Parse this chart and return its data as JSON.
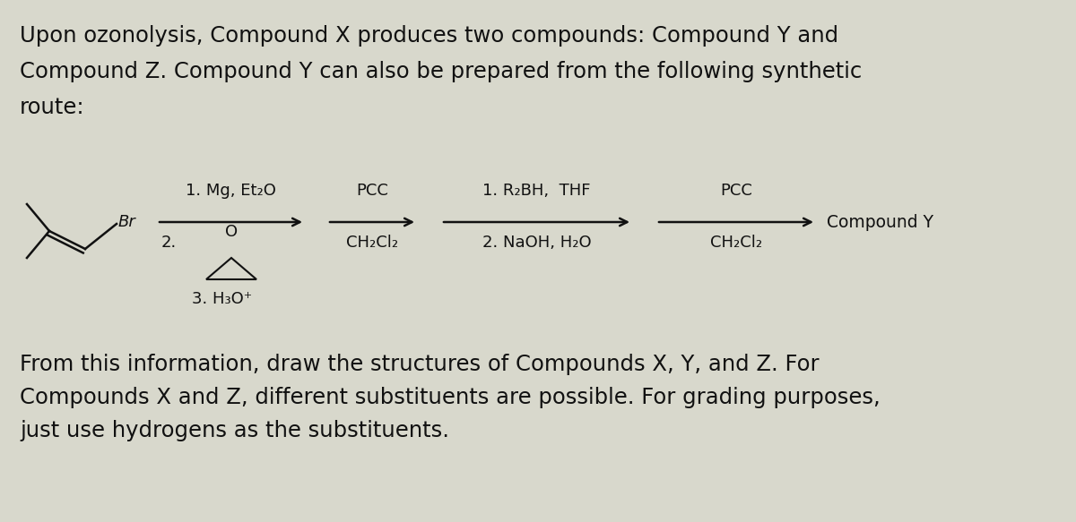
{
  "background_color": "#d8d8cc",
  "title_lines": [
    "Upon ozonolysis, Compound X produces two compounds: Compound Y and",
    "Compound Z. Compound Y can also be prepared from the following synthetic",
    "route:"
  ],
  "footer_lines": [
    "From this information, draw the structures of Compounds X, Y, and Z. For",
    "Compounds X and Z, different substituents are possible. For grading purposes,",
    "just use hydrogens as the substituents."
  ],
  "arrow1_label_top": "1. Mg, Et₂O",
  "arrow1_label_mid": "2.",
  "arrow1_label_bot": "3. H₃O⁺",
  "arrow2_label_top": "PCC",
  "arrow2_label_bot": "CH₂Cl₂",
  "arrow3_label_top": "1. R₂BH,  THF",
  "arrow3_label_bot": "2. NaOH, H₂O",
  "arrow4_label_top": "PCC",
  "arrow4_label_bot": "CH₂Cl₂",
  "compound_y_label": "Compound Y",
  "text_color": "#111111",
  "line_color": "#111111",
  "font_size_body": 17.5,
  "font_size_scheme": 13.0,
  "font_size_compound": 13.5
}
